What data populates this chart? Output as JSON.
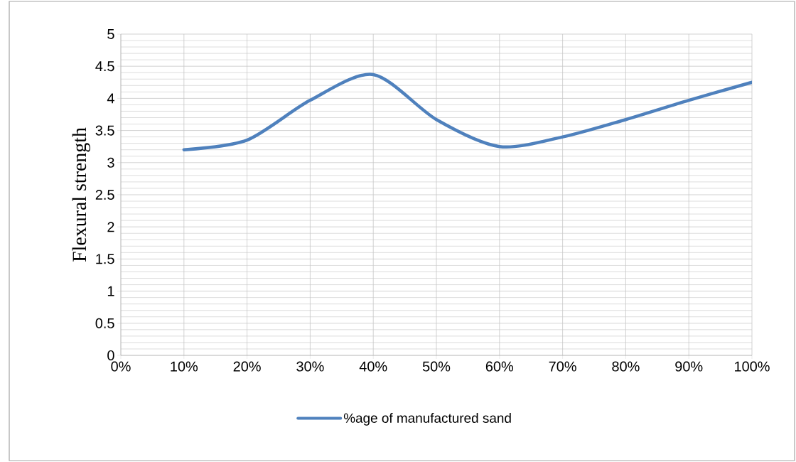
{
  "chart_data": {
    "type": "line",
    "ylabel": "Flexural strength",
    "x": [
      10,
      20,
      30,
      40,
      50,
      60,
      70,
      80,
      90,
      100
    ],
    "series": [
      {
        "name": "%age of manufactured sand",
        "color": "#4f81bd",
        "values": [
          3.2,
          3.35,
          3.97,
          4.37,
          3.67,
          3.25,
          3.4,
          3.67,
          3.97,
          4.25
        ]
      }
    ],
    "xlim": [
      0,
      100
    ],
    "xticks": [
      {
        "value": 0,
        "label": "0%"
      },
      {
        "value": 10,
        "label": "10%"
      },
      {
        "value": 20,
        "label": "20%"
      },
      {
        "value": 30,
        "label": "30%"
      },
      {
        "value": 40,
        "label": "40%"
      },
      {
        "value": 50,
        "label": "50%"
      },
      {
        "value": 60,
        "label": "60%"
      },
      {
        "value": 70,
        "label": "70%"
      },
      {
        "value": 80,
        "label": "80%"
      },
      {
        "value": 90,
        "label": "90%"
      },
      {
        "value": 100,
        "label": "100%"
      }
    ],
    "ylim": [
      0,
      5
    ],
    "yticks": [
      0,
      0.5,
      1,
      1.5,
      2,
      2.5,
      3,
      3.5,
      4,
      4.5,
      5
    ],
    "grid": true,
    "legend": "bottom",
    "marker": "none",
    "line_style": "solid"
  }
}
